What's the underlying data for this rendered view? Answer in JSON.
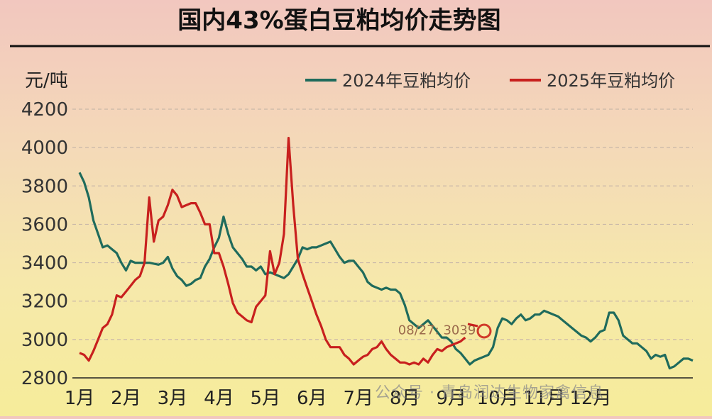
{
  "chart_data": {
    "type": "line",
    "title": "国内43%蛋白豆粕均价走势图",
    "ylabel": "元/吨",
    "xlabel": "",
    "ylim": [
      2800,
      4200
    ],
    "yticks": [
      2800,
      3000,
      3200,
      3400,
      3600,
      3800,
      4000,
      4200
    ],
    "x_categories": [
      "1月",
      "2月",
      "3月",
      "4月",
      "5月",
      "6月",
      "7月",
      "8月",
      "9月",
      "10月",
      "11月",
      "12月"
    ],
    "grid": "horizontal-dashed",
    "legend_position": "top-right",
    "series": [
      {
        "name": "2024年豆粕均价",
        "color": "#1f6b5c",
        "points": [
          [
            0.0,
            3870
          ],
          [
            0.1,
            3820
          ],
          [
            0.2,
            3740
          ],
          [
            0.3,
            3620
          ],
          [
            0.4,
            3550
          ],
          [
            0.5,
            3480
          ],
          [
            0.6,
            3490
          ],
          [
            0.7,
            3470
          ],
          [
            0.8,
            3450
          ],
          [
            0.9,
            3400
          ],
          [
            1.0,
            3360
          ],
          [
            1.1,
            3410
          ],
          [
            1.2,
            3400
          ],
          [
            1.3,
            3400
          ],
          [
            1.5,
            3400
          ],
          [
            1.7,
            3390
          ],
          [
            1.8,
            3400
          ],
          [
            1.9,
            3430
          ],
          [
            2.0,
            3370
          ],
          [
            2.1,
            3330
          ],
          [
            2.2,
            3310
          ],
          [
            2.3,
            3280
          ],
          [
            2.4,
            3290
          ],
          [
            2.5,
            3310
          ],
          [
            2.6,
            3320
          ],
          [
            2.7,
            3380
          ],
          [
            2.8,
            3420
          ],
          [
            2.9,
            3480
          ],
          [
            3.0,
            3530
          ],
          [
            3.1,
            3640
          ],
          [
            3.2,
            3550
          ],
          [
            3.3,
            3480
          ],
          [
            3.4,
            3450
          ],
          [
            3.5,
            3420
          ],
          [
            3.6,
            3380
          ],
          [
            3.7,
            3380
          ],
          [
            3.8,
            3360
          ],
          [
            3.9,
            3380
          ],
          [
            4.0,
            3340
          ],
          [
            4.1,
            3350
          ],
          [
            4.2,
            3340
          ],
          [
            4.3,
            3330
          ],
          [
            4.4,
            3320
          ],
          [
            4.5,
            3340
          ],
          [
            4.6,
            3380
          ],
          [
            4.7,
            3420
          ],
          [
            4.8,
            3480
          ],
          [
            4.9,
            3470
          ],
          [
            5.0,
            3480
          ],
          [
            5.1,
            3480
          ],
          [
            5.2,
            3490
          ],
          [
            5.3,
            3500
          ],
          [
            5.4,
            3510
          ],
          [
            5.5,
            3470
          ],
          [
            5.6,
            3430
          ],
          [
            5.7,
            3400
          ],
          [
            5.8,
            3410
          ],
          [
            5.9,
            3410
          ],
          [
            6.0,
            3380
          ],
          [
            6.1,
            3350
          ],
          [
            6.2,
            3300
          ],
          [
            6.3,
            3280
          ],
          [
            6.4,
            3270
          ],
          [
            6.5,
            3260
          ],
          [
            6.6,
            3270
          ],
          [
            6.7,
            3260
          ],
          [
            6.8,
            3260
          ],
          [
            6.9,
            3240
          ],
          [
            7.0,
            3180
          ],
          [
            7.1,
            3100
          ],
          [
            7.2,
            3080
          ],
          [
            7.3,
            3060
          ],
          [
            7.4,
            3080
          ],
          [
            7.5,
            3100
          ],
          [
            7.6,
            3070
          ],
          [
            7.7,
            3040
          ],
          [
            7.8,
            3010
          ],
          [
            7.9,
            3010
          ],
          [
            8.0,
            2990
          ],
          [
            8.1,
            2950
          ],
          [
            8.2,
            2930
          ],
          [
            8.3,
            2900
          ],
          [
            8.4,
            2870
          ],
          [
            8.5,
            2890
          ],
          [
            8.6,
            2900
          ],
          [
            8.7,
            2910
          ],
          [
            8.8,
            2920
          ],
          [
            8.9,
            2960
          ],
          [
            9.0,
            3060
          ],
          [
            9.1,
            3110
          ],
          [
            9.2,
            3100
          ],
          [
            9.3,
            3080
          ],
          [
            9.4,
            3110
          ],
          [
            9.5,
            3130
          ],
          [
            9.6,
            3100
          ],
          [
            9.7,
            3110
          ],
          [
            9.8,
            3130
          ],
          [
            9.9,
            3130
          ],
          [
            10.0,
            3150
          ],
          [
            10.1,
            3140
          ],
          [
            10.2,
            3130
          ],
          [
            10.3,
            3120
          ],
          [
            10.4,
            3100
          ],
          [
            10.5,
            3080
          ],
          [
            10.6,
            3060
          ],
          [
            10.7,
            3040
          ],
          [
            10.8,
            3020
          ],
          [
            10.9,
            3010
          ],
          [
            11.0,
            2990
          ],
          [
            11.1,
            3010
          ],
          [
            11.2,
            3040
          ],
          [
            11.3,
            3050
          ],
          [
            11.4,
            3140
          ],
          [
            11.5,
            3140
          ],
          [
            11.6,
            3100
          ],
          [
            11.7,
            3020
          ],
          [
            11.8,
            3000
          ],
          [
            11.9,
            2980
          ],
          [
            12.0,
            2980
          ],
          [
            12.1,
            2960
          ],
          [
            12.2,
            2940
          ],
          [
            12.3,
            2900
          ],
          [
            12.4,
            2920
          ],
          [
            12.5,
            2910
          ],
          [
            12.6,
            2920
          ],
          [
            12.7,
            2850
          ],
          [
            12.8,
            2860
          ],
          [
            12.9,
            2880
          ],
          [
            13.0,
            2900
          ],
          [
            13.1,
            2900
          ],
          [
            13.2,
            2890
          ]
        ]
      },
      {
        "name": "2025年豆粕均价",
        "color": "#c8201e",
        "points": [
          [
            0.0,
            2930
          ],
          [
            0.1,
            2920
          ],
          [
            0.2,
            2890
          ],
          [
            0.3,
            2940
          ],
          [
            0.4,
            3000
          ],
          [
            0.5,
            3060
          ],
          [
            0.6,
            3080
          ],
          [
            0.7,
            3130
          ],
          [
            0.8,
            3230
          ],
          [
            0.9,
            3220
          ],
          [
            1.0,
            3250
          ],
          [
            1.1,
            3280
          ],
          [
            1.2,
            3310
          ],
          [
            1.3,
            3330
          ],
          [
            1.4,
            3400
          ],
          [
            1.5,
            3740
          ],
          [
            1.6,
            3510
          ],
          [
            1.7,
            3620
          ],
          [
            1.8,
            3640
          ],
          [
            1.9,
            3700
          ],
          [
            2.0,
            3780
          ],
          [
            2.1,
            3750
          ],
          [
            2.2,
            3690
          ],
          [
            2.3,
            3700
          ],
          [
            2.4,
            3710
          ],
          [
            2.5,
            3710
          ],
          [
            2.6,
            3660
          ],
          [
            2.7,
            3600
          ],
          [
            2.8,
            3600
          ],
          [
            2.9,
            3450
          ],
          [
            3.0,
            3450
          ],
          [
            3.1,
            3380
          ],
          [
            3.2,
            3290
          ],
          [
            3.3,
            3190
          ],
          [
            3.4,
            3140
          ],
          [
            3.5,
            3120
          ],
          [
            3.6,
            3100
          ],
          [
            3.7,
            3090
          ],
          [
            3.8,
            3170
          ],
          [
            3.9,
            3200
          ],
          [
            4.0,
            3230
          ],
          [
            4.1,
            3460
          ],
          [
            4.2,
            3340
          ],
          [
            4.3,
            3400
          ],
          [
            4.4,
            3550
          ],
          [
            4.5,
            4050
          ],
          [
            4.6,
            3700
          ],
          [
            4.7,
            3420
          ],
          [
            4.8,
            3340
          ],
          [
            4.9,
            3270
          ],
          [
            5.0,
            3200
          ],
          [
            5.1,
            3130
          ],
          [
            5.2,
            3070
          ],
          [
            5.3,
            3000
          ],
          [
            5.4,
            2960
          ],
          [
            5.5,
            2960
          ],
          [
            5.6,
            2960
          ],
          [
            5.7,
            2920
          ],
          [
            5.8,
            2900
          ],
          [
            5.9,
            2870
          ],
          [
            6.0,
            2890
          ],
          [
            6.1,
            2910
          ],
          [
            6.2,
            2920
          ],
          [
            6.3,
            2950
          ],
          [
            6.4,
            2960
          ],
          [
            6.5,
            2990
          ],
          [
            6.6,
            2950
          ],
          [
            6.7,
            2920
          ],
          [
            6.8,
            2900
          ],
          [
            6.9,
            2880
          ],
          [
            7.0,
            2880
          ],
          [
            7.1,
            2870
          ],
          [
            7.2,
            2880
          ],
          [
            7.3,
            2870
          ],
          [
            7.4,
            2900
          ],
          [
            7.5,
            2880
          ],
          [
            7.6,
            2920
          ],
          [
            7.7,
            2950
          ],
          [
            7.8,
            2940
          ],
          [
            7.9,
            2960
          ],
          [
            8.0,
            2970
          ],
          [
            8.1,
            2980
          ],
          [
            8.2,
            2990
          ],
          [
            8.3,
            3010
          ]
        ]
      }
    ],
    "annotation": {
      "text": "08/27: 3039",
      "x": 8.3,
      "y": 3039
    }
  },
  "watermark": "公众号 · 青岛润达生物家禽信息"
}
